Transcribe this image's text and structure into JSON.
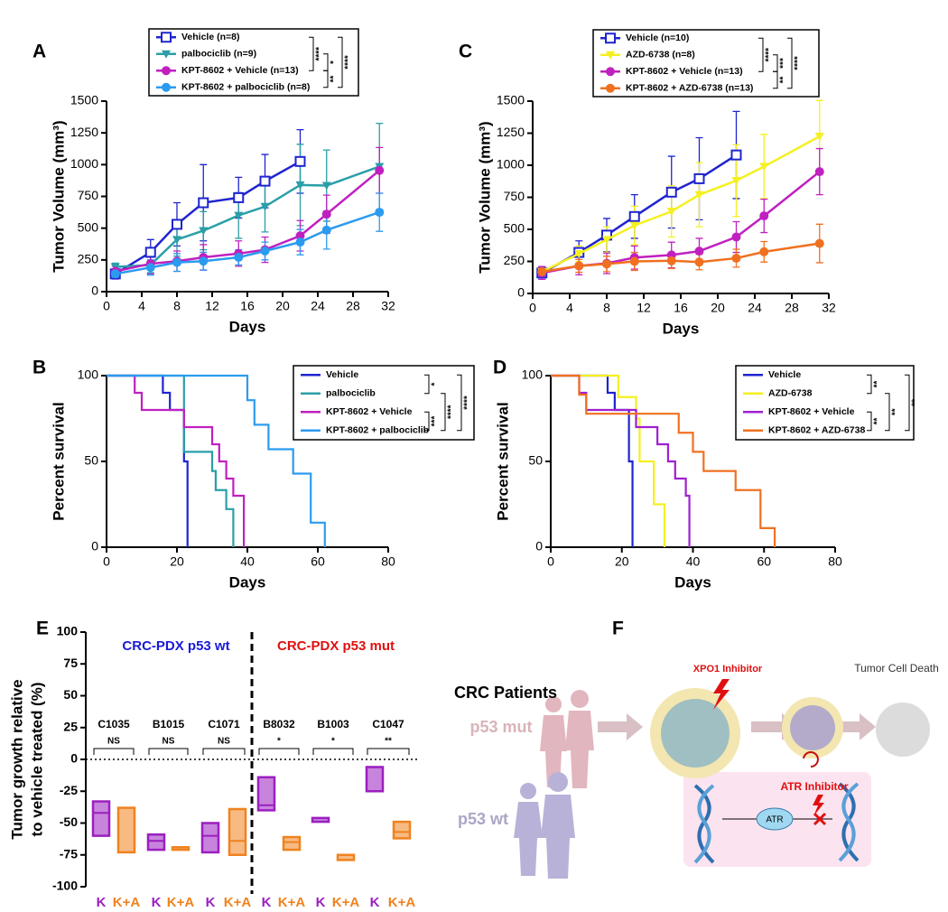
{
  "chart_data": [
    {
      "type": "line",
      "label": "A",
      "xlabel": "Days",
      "ylabel": "Tumor Volume (mm³)",
      "xlim": [
        0,
        32
      ],
      "xticks": [
        0,
        4,
        8,
        12,
        16,
        20,
        24,
        28,
        32
      ],
      "ylim": [
        0,
        1500
      ],
      "yticks": [
        0,
        250,
        500,
        750,
        1000,
        1250,
        1500
      ],
      "significance": [
        "****",
        "*",
        "**",
        "****"
      ],
      "series": [
        {
          "name": "Vehicle (n=8)",
          "color": "#1f24d0",
          "marker": "square-open",
          "x": [
            1,
            5,
            8,
            11,
            15,
            18,
            22
          ],
          "values": [
            140,
            310,
            530,
            700,
            740,
            870,
            1025
          ],
          "errors": [
            40,
            100,
            170,
            300,
            160,
            210,
            250
          ]
        },
        {
          "name": "palbociclib (n=9)",
          "color": "#2a9fa8",
          "marker": "triangle-down",
          "x": [
            1,
            5,
            8,
            11,
            15,
            18,
            22,
            25,
            31
          ],
          "values": [
            195,
            210,
            410,
            480,
            600,
            670,
            840,
            835,
            985
          ],
          "errors": [
            30,
            60,
            130,
            150,
            180,
            200,
            320,
            280,
            340
          ]
        },
        {
          "name": "KPT-8602 + Vehicle (n=13)",
          "color": "#c020c0",
          "marker": "circle",
          "x": [
            1,
            5,
            8,
            11,
            15,
            18,
            22,
            25,
            31
          ],
          "values": [
            160,
            220,
            240,
            270,
            300,
            330,
            440,
            610,
            955
          ],
          "errors": [
            40,
            80,
            80,
            100,
            100,
            100,
            120,
            150,
            180
          ]
        },
        {
          "name": "KPT-8602 + palbociclib (n=8)",
          "color": "#2b9bf0",
          "marker": "circle",
          "x": [
            1,
            5,
            8,
            11,
            15,
            18,
            22,
            25,
            31
          ],
          "values": [
            140,
            190,
            230,
            240,
            270,
            320,
            390,
            485,
            625
          ],
          "errors": [
            30,
            60,
            70,
            70,
            60,
            70,
            100,
            150,
            150
          ]
        }
      ]
    },
    {
      "type": "step",
      "label": "B",
      "xlabel": "Days",
      "ylabel": "Percent survival",
      "xlim": [
        0,
        80
      ],
      "xticks": [
        0,
        20,
        40,
        60,
        80
      ],
      "ylim": [
        0,
        100
      ],
      "yticks": [
        0,
        50,
        100
      ],
      "significance": [
        "*",
        "***",
        "****",
        "****"
      ],
      "series": [
        {
          "name": "Vehicle",
          "color": "#1f24d0",
          "x": [
            0,
            16,
            18,
            22,
            23
          ],
          "values": [
            100,
            90,
            80,
            50,
            0
          ]
        },
        {
          "name": "palbociclib",
          "color": "#2a9fa8",
          "x": [
            0,
            22,
            30,
            31,
            34,
            36
          ],
          "values": [
            100,
            55.6,
            44.4,
            33.3,
            22.2,
            0
          ]
        },
        {
          "name": "KPT-8602 + Vehicle",
          "color": "#c020c0",
          "x": [
            0,
            8,
            10,
            22,
            30,
            32,
            34,
            36,
            39
          ],
          "values": [
            100,
            90,
            80,
            70,
            60,
            50,
            40,
            30,
            0
          ]
        },
        {
          "name": "KPT-8602 + palbociclib",
          "color": "#2b9bf0",
          "x": [
            0,
            40,
            42,
            46,
            53,
            58,
            62
          ],
          "values": [
            100,
            85.7,
            71.4,
            57.1,
            42.9,
            14.3,
            0
          ]
        }
      ]
    },
    {
      "type": "line",
      "label": "C",
      "xlabel": "Days",
      "ylabel": "Tumor Volume (mm³)",
      "xlim": [
        0,
        32
      ],
      "xticks": [
        0,
        4,
        8,
        12,
        16,
        20,
        24,
        28,
        32
      ],
      "ylim": [
        0,
        1500
      ],
      "yticks": [
        0,
        250,
        500,
        750,
        1000,
        1250,
        1500
      ],
      "significance": [
        "****",
        "***",
        "**",
        "****"
      ],
      "series": [
        {
          "name": "Vehicle (n=10)",
          "color": "#1f24d0",
          "marker": "square-open",
          "x": [
            1,
            5,
            8,
            11,
            15,
            18,
            22
          ],
          "values": [
            160,
            320,
            455,
            600,
            790,
            895,
            1080
          ],
          "errors": [
            50,
            90,
            130,
            170,
            280,
            320,
            340
          ]
        },
        {
          "name": "AZD-6738 (n=8)",
          "color": "#f5f020",
          "marker": "triangle-down",
          "x": [
            1,
            5,
            8,
            11,
            15,
            18,
            22,
            25,
            31
          ],
          "values": [
            170,
            310,
            420,
            530,
            640,
            770,
            880,
            990,
            1225
          ],
          "errors": [
            30,
            60,
            100,
            150,
            200,
            250,
            280,
            250,
            280
          ]
        },
        {
          "name": "KPT-8602 + Vehicle (n=13)",
          "color": "#c020c0",
          "marker": "circle",
          "x": [
            1,
            5,
            8,
            11,
            15,
            18,
            22,
            25,
            31
          ],
          "values": [
            160,
            215,
            235,
            280,
            300,
            330,
            440,
            605,
            950
          ],
          "errors": [
            50,
            70,
            80,
            90,
            100,
            100,
            120,
            130,
            180
          ]
        },
        {
          "name": "KPT-8602 + AZD-6738 (n=13)",
          "color": "#f07020",
          "marker": "circle",
          "x": [
            1,
            5,
            8,
            11,
            15,
            18,
            22,
            25,
            31
          ],
          "values": [
            170,
            215,
            230,
            250,
            255,
            245,
            275,
            325,
            390
          ],
          "errors": [
            30,
            50,
            60,
            70,
            60,
            60,
            70,
            80,
            150
          ]
        }
      ]
    },
    {
      "type": "step",
      "label": "D",
      "xlabel": "Days",
      "ylabel": "Percent survival",
      "xlim": [
        0,
        80
      ],
      "xticks": [
        0,
        20,
        40,
        60,
        80
      ],
      "ylim": [
        0,
        100
      ],
      "yticks": [
        0,
        50,
        100
      ],
      "significance": [
        "**",
        "**",
        "**",
        "**"
      ],
      "series": [
        {
          "name": "Vehicle",
          "color": "#1f24d0",
          "x": [
            0,
            16,
            18,
            22,
            23
          ],
          "values": [
            100,
            90,
            80,
            50,
            0
          ]
        },
        {
          "name": "AZD-6738",
          "color": "#f5f020",
          "x": [
            0,
            19,
            24,
            25,
            29,
            32
          ],
          "values": [
            100,
            87.5,
            75,
            50,
            25,
            0
          ]
        },
        {
          "name": "KPT-8602 + Vehicle",
          "color": "#a020d0",
          "x": [
            0,
            8,
            10,
            24,
            30,
            33,
            35,
            38,
            39
          ],
          "values": [
            100,
            90,
            80,
            70,
            60,
            50,
            40,
            30,
            0
          ]
        },
        {
          "name": "KPT-8602 + AZD-6738",
          "color": "#f07020",
          "x": [
            0,
            8,
            10,
            36,
            40,
            43,
            52,
            59,
            63
          ],
          "values": [
            100,
            88.9,
            77.8,
            66.7,
            55.6,
            44.4,
            33.3,
            11.1,
            0
          ]
        }
      ]
    },
    {
      "type": "box",
      "label": "E",
      "ylabel": [
        "Tumor growth relative",
        "to vehicle treated (%)"
      ],
      "ylim": [
        -100,
        100
      ],
      "yticks": [
        100,
        75,
        50,
        25,
        0,
        -25,
        -50,
        -75,
        -100
      ],
      "headers": [
        {
          "text": "CRC-PDX p53 wt",
          "color": "#1a1ad8"
        },
        {
          "text": "CRC-PDX p53 mut",
          "color": "#e01010"
        }
      ],
      "groups": [
        "C1035",
        "B1015",
        "C1071",
        "B8032",
        "B1003",
        "C1047"
      ],
      "significance": [
        "NS",
        "NS",
        "NS",
        "*",
        "*",
        "**"
      ],
      "series": [
        {
          "name": "K",
          "color": "#9b1fc0",
          "boxes": [
            {
              "low": -60,
              "mid": -42,
              "high": -33
            },
            {
              "low": -71,
              "mid": -64,
              "high": -59
            },
            {
              "low": -73,
              "mid": -60,
              "high": -50
            },
            {
              "low": -40,
              "mid": -36,
              "high": -14
            },
            {
              "low": -49,
              "high": -46
            },
            {
              "low": -25,
              "high": -6
            }
          ]
        },
        {
          "name": "K+A",
          "color": "#f0821e",
          "boxes": [
            {
              "low": -73,
              "high": -38
            },
            {
              "low": -71,
              "high": -69
            },
            {
              "low": -75,
              "mid": -64,
              "high": -39
            },
            {
              "low": -71,
              "mid": -65,
              "high": -61
            },
            {
              "low": -79,
              "high": -75
            },
            {
              "low": -62,
              "mid": -57,
              "high": -49
            }
          ]
        }
      ]
    }
  ],
  "diagram": {
    "label": "F",
    "patients": "CRC Patients",
    "p53_mut": "p53 mut",
    "p53_wt": "p53 wt",
    "xpo1": "XPO1 Inhibitor",
    "death": "Tumor Cell Death",
    "atr_inhibitor": "ATR Inhibitor",
    "atr": "ATR"
  }
}
